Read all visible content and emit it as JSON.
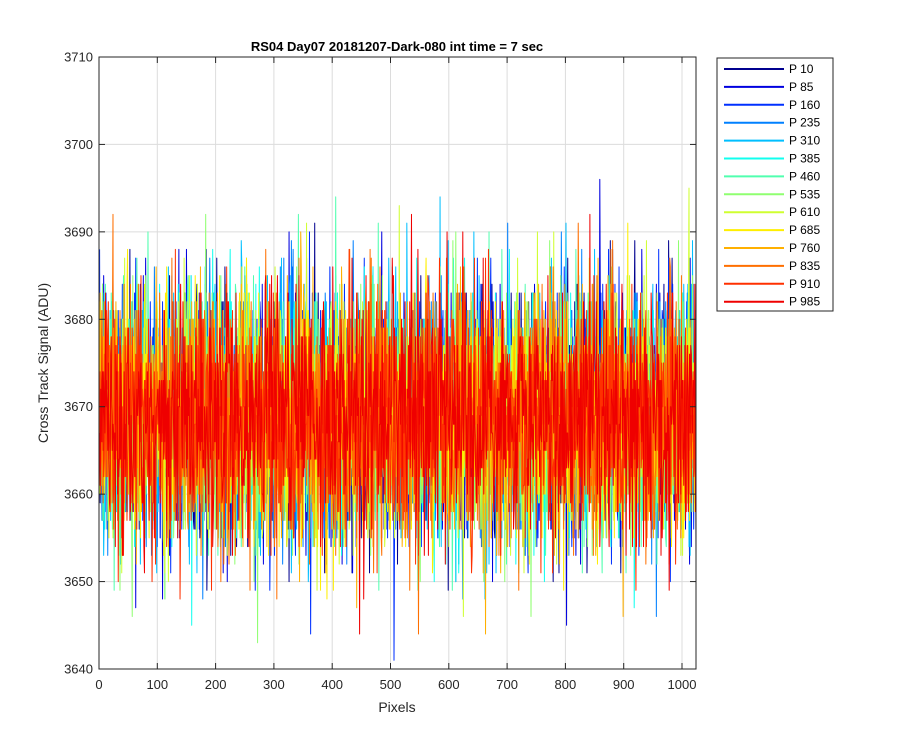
{
  "chart_data": {
    "type": "line",
    "title": "RS04 Day07 20181207-Dark-080 int time = 7 sec",
    "xlabel": "Pixels",
    "ylabel": "Cross Track Signal (ADU)",
    "xlim": [
      0,
      1024
    ],
    "ylim": [
      3640,
      3710
    ],
    "xticks": [
      0,
      100,
      200,
      300,
      400,
      500,
      600,
      700,
      800,
      900,
      1000
    ],
    "yticks": [
      3640,
      3650,
      3660,
      3670,
      3680,
      3690,
      3700,
      3710
    ],
    "grid": true,
    "legend_position": "outside-right-top",
    "noise_model": {
      "mean": 3669,
      "std": 7,
      "min": 3640,
      "max": 3701,
      "points_per_series": 1024
    },
    "series": [
      {
        "name": "P 10",
        "color": "#00008f"
      },
      {
        "name": "P 85",
        "color": "#0000df"
      },
      {
        "name": "P 160",
        "color": "#0030ff"
      },
      {
        "name": "P 235",
        "color": "#0080ff"
      },
      {
        "name": "P 310",
        "color": "#00bfff"
      },
      {
        "name": "P 385",
        "color": "#10ffef"
      },
      {
        "name": "P 460",
        "color": "#50ffaf"
      },
      {
        "name": "P 535",
        "color": "#8fff70"
      },
      {
        "name": "P 610",
        "color": "#cfff30"
      },
      {
        "name": "P 685",
        "color": "#ffef00"
      },
      {
        "name": "P 760",
        "color": "#ffb000"
      },
      {
        "name": "P 835",
        "color": "#ff6f00"
      },
      {
        "name": "P 910",
        "color": "#ff3000"
      },
      {
        "name": "P 985",
        "color": "#ef0000"
      }
    ]
  }
}
